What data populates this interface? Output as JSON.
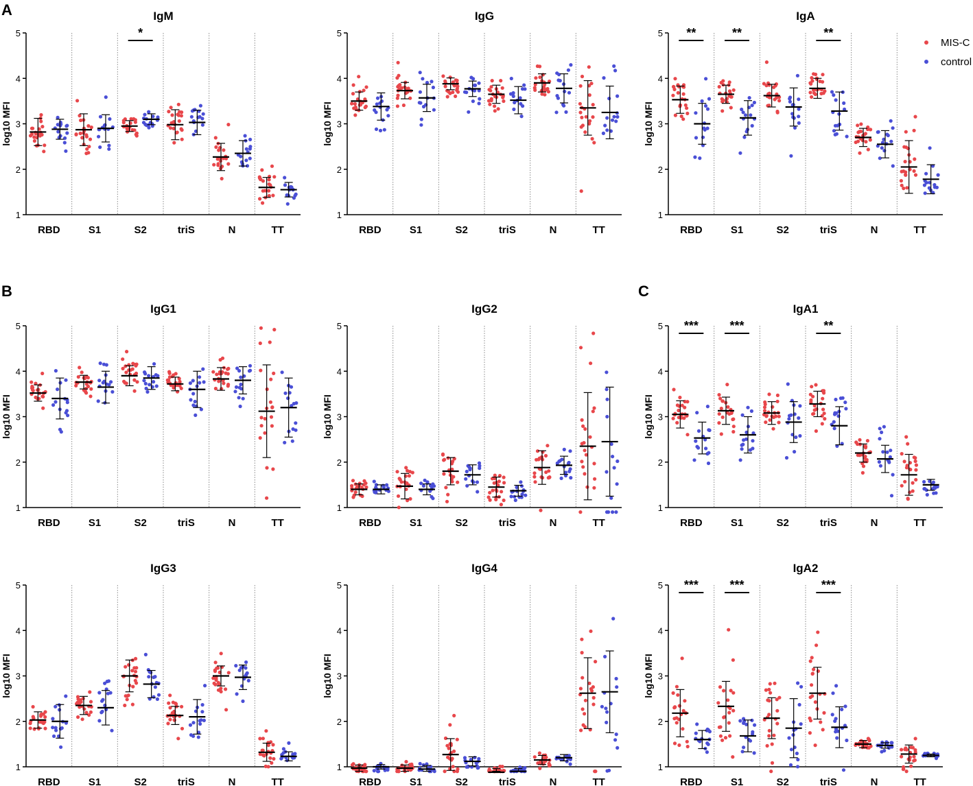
{
  "panel_labels": [
    "A",
    "B",
    "C"
  ],
  "legend": [
    {
      "label": "MIS-C",
      "color": "#e8474b"
    },
    {
      "label": "control",
      "color": "#4a4fd6"
    }
  ],
  "colors": {
    "mis_c": "#e8474b",
    "control": "#4a4fd6",
    "axis": "#000000",
    "separator": "#888888"
  },
  "chart_data": [
    {
      "type": "scatter",
      "title": "IgM",
      "ylabel": "log10 MFI",
      "ylim": [
        1,
        5
      ],
      "yticks": [
        "1",
        "2",
        "3",
        "4",
        "5"
      ],
      "categories": [
        "RBD",
        "S1",
        "S2",
        "triS",
        "N",
        "TT"
      ],
      "series": [
        {
          "name": "MIS-C",
          "n": 22,
          "center": [
            2.82,
            2.87,
            2.95,
            2.98,
            2.27,
            1.6
          ],
          "sd": [
            0.3,
            0.35,
            0.12,
            0.33,
            0.3,
            0.22
          ]
        },
        {
          "name": "control",
          "n": 15,
          "center": [
            2.88,
            2.9,
            3.1,
            3.03,
            2.35,
            1.55
          ],
          "sd": [
            0.22,
            0.3,
            0.12,
            0.27,
            0.28,
            0.16
          ]
        }
      ],
      "significance": [
        {
          "category": "S2",
          "label": "*"
        }
      ]
    },
    {
      "type": "scatter",
      "title": "IgG",
      "ylabel": "log10 MFI",
      "ylim": [
        1,
        5
      ],
      "yticks": [
        "1",
        "2",
        "3",
        "4",
        "5"
      ],
      "categories": [
        "RBD",
        "S1",
        "S2",
        "triS",
        "N",
        "TT"
      ],
      "series": [
        {
          "name": "MIS-C",
          "n": 22,
          "center": [
            3.5,
            3.73,
            3.88,
            3.65,
            3.9,
            3.35
          ],
          "sd": [
            0.2,
            0.18,
            0.13,
            0.2,
            0.2,
            0.6
          ]
        },
        {
          "name": "control",
          "n": 15,
          "center": [
            3.38,
            3.57,
            3.77,
            3.52,
            3.78,
            3.25
          ],
          "sd": [
            0.3,
            0.3,
            0.17,
            0.3,
            0.32,
            0.58
          ]
        }
      ],
      "significance": []
    },
    {
      "type": "scatter",
      "title": "IgA",
      "ylabel": "log10 MFI",
      "ylim": [
        1,
        5
      ],
      "yticks": [
        "1",
        "2",
        "3",
        "4",
        "5"
      ],
      "categories": [
        "RBD",
        "S1",
        "S2",
        "triS",
        "N",
        "TT"
      ],
      "series": [
        {
          "name": "MIS-C",
          "n": 22,
          "center": [
            3.53,
            3.65,
            3.62,
            3.78,
            2.7,
            2.05
          ],
          "sd": [
            0.3,
            0.2,
            0.25,
            0.22,
            0.2,
            0.58
          ]
        },
        {
          "name": "control",
          "n": 15,
          "center": [
            3.0,
            3.13,
            3.37,
            3.28,
            2.55,
            1.78
          ],
          "sd": [
            0.45,
            0.38,
            0.42,
            0.42,
            0.3,
            0.32
          ]
        }
      ],
      "significance": [
        {
          "category": "RBD",
          "label": "**"
        },
        {
          "category": "S1",
          "label": "**"
        },
        {
          "category": "triS",
          "label": "**"
        }
      ]
    },
    {
      "type": "scatter",
      "title": "IgG1",
      "ylabel": "log10 MFI",
      "ylim": [
        1,
        5
      ],
      "yticks": [
        "1",
        "2",
        "3",
        "4",
        "5"
      ],
      "categories": [
        "RBD",
        "S1",
        "S2",
        "triS",
        "N",
        "TT"
      ],
      "series": [
        {
          "name": "MIS-C",
          "n": 22,
          "center": [
            3.52,
            3.76,
            3.9,
            3.72,
            3.83,
            3.12
          ],
          "sd": [
            0.18,
            0.15,
            0.22,
            0.15,
            0.25,
            1.02
          ]
        },
        {
          "name": "control",
          "n": 15,
          "center": [
            3.4,
            3.65,
            3.85,
            3.6,
            3.8,
            3.2
          ],
          "sd": [
            0.45,
            0.35,
            0.25,
            0.4,
            0.3,
            0.65
          ]
        }
      ],
      "significance": []
    },
    {
      "type": "scatter",
      "title": "IgG2",
      "ylabel": "log10 MFI",
      "ylim": [
        1,
        5
      ],
      "yticks": [
        "1",
        "2",
        "3",
        "4",
        "5"
      ],
      "categories": [
        "RBD",
        "S1",
        "S2",
        "triS",
        "N",
        "TT"
      ],
      "series": [
        {
          "name": "MIS-C",
          "n": 22,
          "center": [
            1.4,
            1.47,
            1.8,
            1.45,
            1.88,
            2.35
          ],
          "sd": [
            0.12,
            0.28,
            0.3,
            0.22,
            0.37,
            1.18
          ]
        },
        {
          "name": "control",
          "n": 15,
          "center": [
            1.4,
            1.4,
            1.72,
            1.37,
            1.93,
            2.45
          ],
          "sd": [
            0.1,
            0.12,
            0.22,
            0.12,
            0.2,
            1.2
          ]
        }
      ],
      "significance": []
    },
    {
      "type": "scatter",
      "title": "IgA1",
      "ylabel": "log10 MFI",
      "ylim": [
        1,
        5
      ],
      "yticks": [
        "1",
        "2",
        "3",
        "4",
        "5"
      ],
      "categories": [
        "RBD",
        "S1",
        "S2",
        "triS",
        "N",
        "TT"
      ],
      "series": [
        {
          "name": "MIS-C",
          "n": 22,
          "center": [
            3.05,
            3.13,
            3.08,
            3.28,
            2.2,
            1.72
          ],
          "sd": [
            0.3,
            0.3,
            0.25,
            0.28,
            0.2,
            0.45
          ]
        },
        {
          "name": "control",
          "n": 15,
          "center": [
            2.53,
            2.6,
            2.88,
            2.8,
            2.07,
            1.5
          ],
          "sd": [
            0.35,
            0.4,
            0.45,
            0.42,
            0.3,
            0.12
          ]
        }
      ],
      "significance": [
        {
          "category": "RBD",
          "label": "***"
        },
        {
          "category": "S1",
          "label": "***"
        },
        {
          "category": "triS",
          "label": "**"
        }
      ]
    },
    {
      "type": "scatter",
      "title": "IgG3",
      "ylabel": "log10 MFI",
      "ylim": [
        1,
        5
      ],
      "yticks": [
        "1",
        "2",
        "3",
        "4",
        "5"
      ],
      "categories": [
        "RBD",
        "S1",
        "S2",
        "triS",
        "N",
        "TT"
      ],
      "series": [
        {
          "name": "MIS-C",
          "n": 22,
          "center": [
            2.03,
            2.35,
            3.0,
            2.13,
            3.0,
            1.32
          ],
          "sd": [
            0.18,
            0.2,
            0.35,
            0.2,
            0.22,
            0.2
          ]
        },
        {
          "name": "control",
          "n": 15,
          "center": [
            2.0,
            2.3,
            2.82,
            2.1,
            2.97,
            1.23
          ],
          "sd": [
            0.37,
            0.38,
            0.3,
            0.38,
            0.27,
            0.1
          ]
        }
      ],
      "significance": []
    },
    {
      "type": "scatter",
      "title": "IgG4",
      "ylabel": "log10 MFI",
      "ylim": [
        1,
        5
      ],
      "yticks": [
        "1",
        "2",
        "3",
        "4",
        "5"
      ],
      "categories": [
        "RBD",
        "S1",
        "S2",
        "triS",
        "N",
        "TT"
      ],
      "series": [
        {
          "name": "MIS-C",
          "n": 22,
          "center": [
            0.97,
            0.97,
            1.27,
            0.88,
            1.15,
            2.62
          ],
          "sd": [
            0.07,
            0.07,
            0.35,
            0.08,
            0.1,
            0.78
          ]
        },
        {
          "name": "control",
          "n": 15,
          "center": [
            1.0,
            0.95,
            1.12,
            0.9,
            1.2,
            2.65
          ],
          "sd": [
            0.05,
            0.08,
            0.1,
            0.06,
            0.07,
            0.9
          ]
        }
      ],
      "significance": []
    },
    {
      "type": "scatter",
      "title": "IgA2",
      "ylabel": "log10 MFI",
      "ylim": [
        1,
        5
      ],
      "yticks": [
        "1",
        "2",
        "3",
        "4",
        "5"
      ],
      "categories": [
        "RBD",
        "S1",
        "S2",
        "triS",
        "N",
        "TT"
      ],
      "series": [
        {
          "name": "MIS-C",
          "n": 22,
          "center": [
            2.18,
            2.33,
            2.07,
            2.62,
            1.5,
            1.28
          ],
          "sd": [
            0.52,
            0.55,
            0.45,
            0.57,
            0.08,
            0.2
          ]
        },
        {
          "name": "control",
          "n": 15,
          "center": [
            1.6,
            1.68,
            1.85,
            1.87,
            1.47,
            1.25
          ],
          "sd": [
            0.2,
            0.35,
            0.65,
            0.45,
            0.06,
            0.03
          ]
        }
      ],
      "significance": [
        {
          "category": "RBD",
          "label": "***"
        },
        {
          "category": "S1",
          "label": "***"
        },
        {
          "category": "triS",
          "label": "***"
        }
      ]
    }
  ]
}
